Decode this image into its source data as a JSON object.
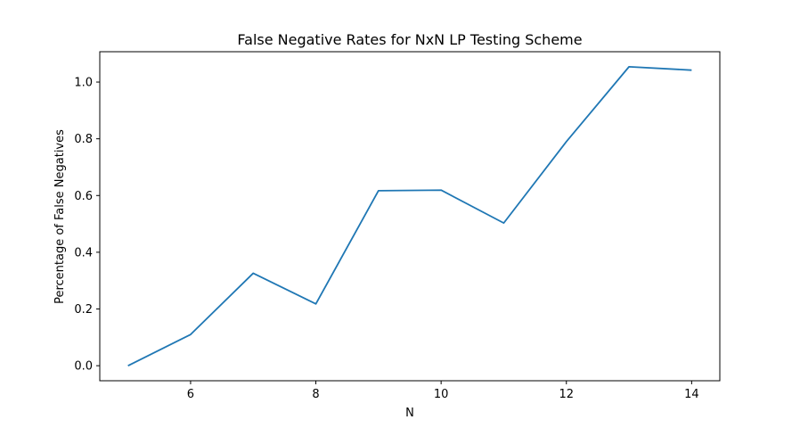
{
  "chart_data": {
    "type": "line",
    "title": "False Negative Rates for NxN LP Testing Scheme",
    "xlabel": "N",
    "ylabel": "Percentage of False Negatives",
    "xlim": [
      4.55,
      14.45
    ],
    "ylim": [
      -0.053,
      1.107
    ],
    "xticks": [
      6,
      8,
      10,
      12,
      14
    ],
    "xtick_labels": [
      "6",
      "8",
      "10",
      "12",
      "14"
    ],
    "yticks": [
      0.0,
      0.2,
      0.4,
      0.6,
      0.8,
      1.0
    ],
    "ytick_labels": [
      "0.0",
      "0.2",
      "0.4",
      "0.6",
      "0.8",
      "1.0"
    ],
    "grid": false,
    "series": [
      {
        "x": [
          5,
          6,
          7,
          8,
          9,
          10,
          11,
          12,
          13,
          14
        ],
        "values": [
          0.0,
          0.11,
          0.326,
          0.218,
          0.617,
          0.619,
          0.503,
          0.79,
          1.054,
          1.042
        ],
        "color": "#1f77b4"
      }
    ]
  }
}
